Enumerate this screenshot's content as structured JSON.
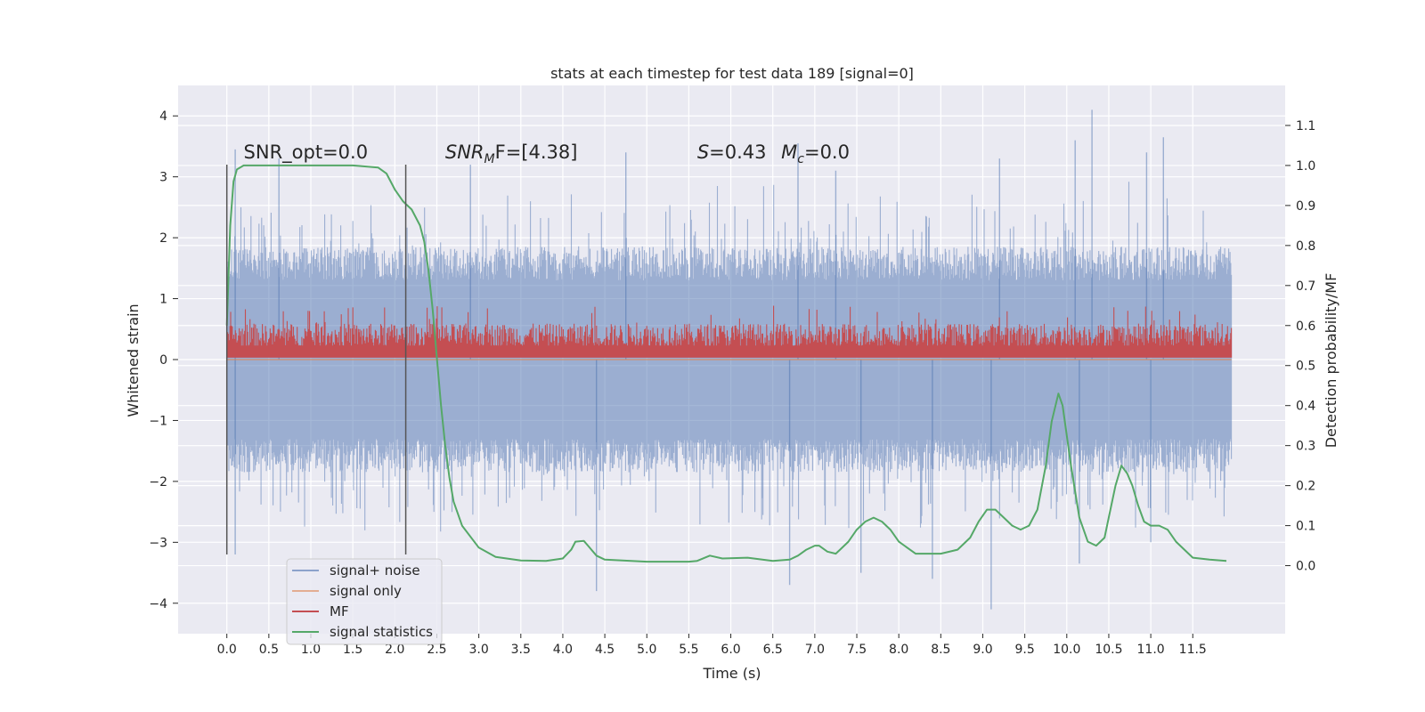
{
  "chart_data": {
    "type": "line",
    "title": "stats at each timestep for test data 189 [signal=0]",
    "xlabel": "Time (s)",
    "ylabel": "Whitened strain",
    "y2label": "Detection probability/MF",
    "xlim": [
      -0.58,
      12.6
    ],
    "ylim": [
      -4.5,
      4.5
    ],
    "y2lim": [
      -0.17,
      1.2
    ],
    "xticks": [
      0.0,
      0.5,
      1.0,
      1.5,
      2.0,
      2.5,
      3.0,
      3.5,
      4.0,
      4.5,
      5.0,
      5.5,
      6.0,
      6.5,
      7.0,
      7.5,
      8.0,
      8.5,
      9.0,
      9.5,
      10.0,
      10.5,
      11.0,
      11.5
    ],
    "xtick_labels": [
      "0.0",
      "0.5",
      "1.0",
      "1.5",
      "2.0",
      "2.5",
      "3.0",
      "3.5",
      "4.0",
      "4.5",
      "5.0",
      "5.5",
      "6.0",
      "6.5",
      "7.0",
      "7.5",
      "8.0",
      "8.5",
      "9.0",
      "9.5",
      "10.0",
      "10.5",
      "11.0",
      "11.5"
    ],
    "yticks": [
      -4,
      -3,
      -2,
      -1,
      0,
      1,
      2,
      3,
      4
    ],
    "ytick_labels": [
      "−4",
      "−3",
      "−2",
      "−1",
      "0",
      "1",
      "2",
      "3",
      "4"
    ],
    "y2ticks": [
      0.0,
      0.1,
      0.2,
      0.3,
      0.4,
      0.5,
      0.6,
      0.7,
      0.8,
      0.9,
      1.0,
      1.1
    ],
    "y2tick_labels": [
      "0.0",
      "0.1",
      "0.2",
      "0.3",
      "0.4",
      "0.5",
      "0.6",
      "0.7",
      "0.8",
      "0.9",
      "1.0",
      "1.1"
    ],
    "grid": true,
    "legend_position": "lower-left",
    "annotations": [
      {
        "text": "SNR_opt=0.0",
        "x": 0.2,
        "y": 3.3
      },
      {
        "text": "SNR",
        "sub": "M",
        "rest": "F=[4.38]",
        "italic_main": true,
        "x": 2.6,
        "y": 3.3
      },
      {
        "text": "S",
        "rest": "=0.43",
        "italic_main": true,
        "x": 5.6,
        "y": 3.3
      },
      {
        "text": "M",
        "sub": "c",
        "rest": "=0.0",
        "italic_main": true,
        "x": 6.6,
        "y": 3.3
      }
    ],
    "vlines": [
      {
        "x": 0.0,
        "ymin": -3.2,
        "ymax": 3.2
      },
      {
        "x": 2.13,
        "ymin": -3.2,
        "ymax": 3.2
      }
    ],
    "series": [
      {
        "name": "signal+ noise",
        "color": "#4c72b0",
        "style": "noise-band",
        "x_range": [
          0.0,
          11.96
        ],
        "envelope_upper": 1.9,
        "envelope_lower": -1.9,
        "notable_peaks": [
          [
            0.1,
            3.45
          ],
          [
            0.62,
            3.3
          ],
          [
            2.9,
            3.2
          ],
          [
            4.75,
            3.4
          ],
          [
            6.8,
            3.55
          ],
          [
            7.25,
            3.1
          ],
          [
            9.2,
            3.3
          ],
          [
            10.1,
            3.6
          ],
          [
            10.3,
            4.1
          ],
          [
            10.95,
            3.4
          ],
          [
            11.15,
            3.65
          ]
        ],
        "notable_troughs": [
          [
            0.1,
            -3.2
          ],
          [
            4.4,
            -3.8
          ],
          [
            6.7,
            -3.7
          ],
          [
            7.55,
            -3.5
          ],
          [
            8.4,
            -3.6
          ],
          [
            9.1,
            -4.1
          ],
          [
            10.15,
            -3.35
          ],
          [
            11.0,
            -3.0
          ]
        ]
      },
      {
        "name": "signal only",
        "color": "#dd8452",
        "style": "flat",
        "x": [
          0.0,
          11.96
        ],
        "y": [
          0.0,
          0.0
        ]
      },
      {
        "name": "MF",
        "color": "#c44e52",
        "style": "mf-band",
        "x_range": [
          0.0,
          11.96
        ],
        "base": 0.52,
        "typical_top": 0.6,
        "max": 0.65
      },
      {
        "name": "signal statistics",
        "color": "#55a868",
        "style": "line",
        "x": [
          0.0,
          0.04,
          0.08,
          0.12,
          0.2,
          0.3,
          0.5,
          1.0,
          1.5,
          1.8,
          1.9,
          2.0,
          2.1,
          2.2,
          2.3,
          2.35,
          2.4,
          2.45,
          2.5,
          2.55,
          2.6,
          2.65,
          2.7,
          2.8,
          3.0,
          3.2,
          3.5,
          3.8,
          4.0,
          4.1,
          4.15,
          4.25,
          4.3,
          4.4,
          4.5,
          5.0,
          5.5,
          5.6,
          5.75,
          5.9,
          6.2,
          6.5,
          6.7,
          6.8,
          6.9,
          7.0,
          7.05,
          7.15,
          7.25,
          7.3,
          7.4,
          7.5,
          7.6,
          7.7,
          7.8,
          7.9,
          8.0,
          8.2,
          8.5,
          8.7,
          8.85,
          8.95,
          9.05,
          9.15,
          9.25,
          9.35,
          9.45,
          9.55,
          9.65,
          9.75,
          9.82,
          9.9,
          9.95,
          10.05,
          10.15,
          10.25,
          10.35,
          10.45,
          10.5,
          10.58,
          10.65,
          10.72,
          10.78,
          10.85,
          10.92,
          11.0,
          11.1,
          11.2,
          11.3,
          11.5,
          11.7,
          11.9
        ],
        "y": [
          0.6,
          0.85,
          0.96,
          0.99,
          1.0,
          1.0,
          1.0,
          1.0,
          1.0,
          0.995,
          0.98,
          0.94,
          0.91,
          0.89,
          0.85,
          0.81,
          0.74,
          0.64,
          0.52,
          0.4,
          0.3,
          0.22,
          0.16,
          0.1,
          0.045,
          0.022,
          0.013,
          0.012,
          0.018,
          0.04,
          0.06,
          0.062,
          0.05,
          0.025,
          0.015,
          0.01,
          0.01,
          0.012,
          0.025,
          0.018,
          0.02,
          0.012,
          0.015,
          0.025,
          0.04,
          0.05,
          0.05,
          0.035,
          0.03,
          0.04,
          0.06,
          0.09,
          0.11,
          0.12,
          0.11,
          0.09,
          0.06,
          0.03,
          0.03,
          0.04,
          0.07,
          0.11,
          0.14,
          0.14,
          0.12,
          0.1,
          0.09,
          0.1,
          0.14,
          0.25,
          0.36,
          0.43,
          0.4,
          0.25,
          0.12,
          0.06,
          0.05,
          0.07,
          0.12,
          0.2,
          0.25,
          0.23,
          0.2,
          0.15,
          0.11,
          0.1,
          0.1,
          0.09,
          0.06,
          0.02,
          0.015,
          0.012
        ]
      }
    ]
  }
}
